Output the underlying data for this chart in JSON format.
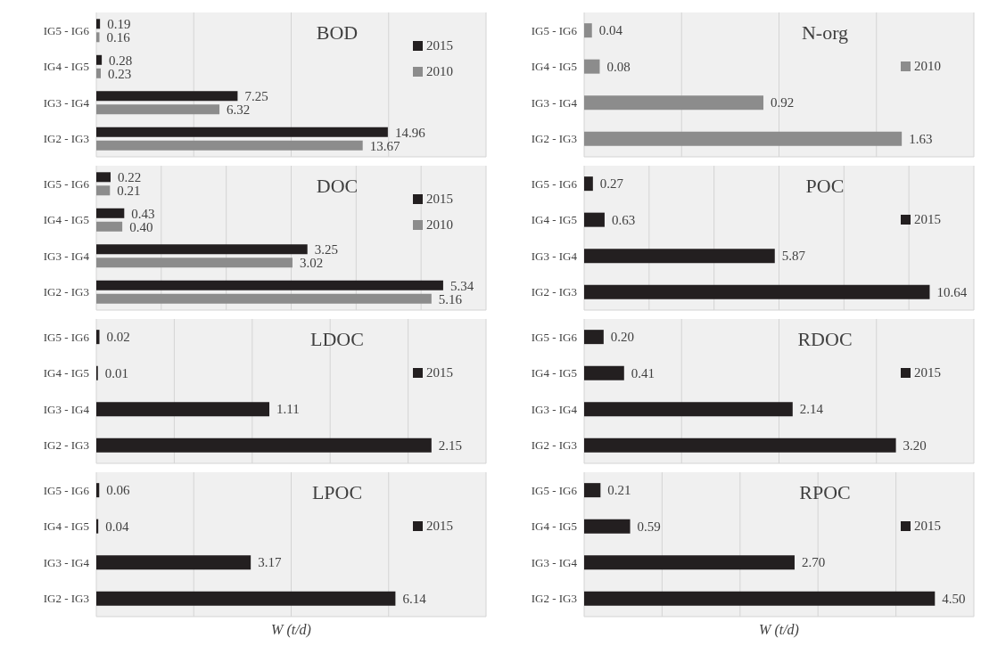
{
  "chart_data": [
    {
      "type": "bar",
      "orientation": "horizontal",
      "title": "BOD",
      "categories": [
        "IG5 - IG6",
        "IG4 - IG5",
        "IG3 - IG4",
        "IG2 - IG3"
      ],
      "series": [
        {
          "name": "2015",
          "color": "#231f20",
          "values": [
            0.19,
            0.28,
            7.25,
            14.96
          ],
          "value_labels": [
            "0.19",
            "0.28",
            "7.25",
            "14.96"
          ]
        },
        {
          "name": "2010",
          "color": "#8c8c8c",
          "values": [
            0.16,
            0.23,
            6.32,
            13.67
          ],
          "value_labels": [
            "0.16",
            "0.23",
            "6.32",
            "13.67"
          ]
        }
      ],
      "xlim": [
        0,
        20
      ],
      "xticks": [
        {
          "value": 0,
          "label": null
        },
        {
          "value": 5,
          "label": null
        },
        {
          "value": 10,
          "label": null
        },
        {
          "value": 15,
          "label": null
        },
        {
          "value": 20,
          "label": null
        }
      ],
      "tick_labels": "y",
      "grid": "x",
      "legend": "right"
    },
    {
      "type": "bar",
      "orientation": "horizontal",
      "title": "N-org",
      "categories": [
        "IG5 - IG6",
        "IG4 - IG5",
        "IG3 - IG4",
        "IG2 - IG3"
      ],
      "series": [
        {
          "name": "2010",
          "color": "#8c8c8c",
          "values": [
            0.04,
            0.08,
            0.92,
            1.63
          ],
          "value_labels": [
            "0.04",
            "0.08",
            "0.92",
            "1.63"
          ]
        }
      ],
      "xlim": [
        0,
        2
      ],
      "xticks": [
        {
          "value": 0,
          "label": null
        },
        {
          "value": 0.5,
          "label": null
        },
        {
          "value": 1,
          "label": null
        },
        {
          "value": 1.5,
          "label": null
        },
        {
          "value": 2,
          "label": null
        }
      ],
      "tick_labels": "y",
      "grid": "x",
      "legend": "right"
    },
    {
      "type": "bar",
      "orientation": "horizontal",
      "title": "DOC",
      "categories": [
        "IG5 - IG6",
        "IG4 - IG5",
        "IG3 - IG4",
        "IG2 - IG3"
      ],
      "series": [
        {
          "name": "2015",
          "color": "#231f20",
          "values": [
            0.22,
            0.43,
            3.25,
            5.34
          ],
          "value_labels": [
            "0.22",
            "0.43",
            "3.25",
            "5.34"
          ]
        },
        {
          "name": "2010",
          "color": "#8c8c8c",
          "values": [
            0.21,
            0.4,
            3.02,
            5.16
          ],
          "value_labels": [
            "0.21",
            "0.40",
            "3.02",
            "5.16"
          ]
        }
      ],
      "xlim": [
        0,
        6
      ],
      "xticks": [
        {
          "value": 0,
          "label": null
        },
        {
          "value": 1,
          "label": null
        },
        {
          "value": 2,
          "label": null
        },
        {
          "value": 3,
          "label": null
        },
        {
          "value": 4,
          "label": null
        },
        {
          "value": 5,
          "label": null
        },
        {
          "value": 6,
          "label": null
        }
      ],
      "tick_labels": "y",
      "grid": "x",
      "legend": "right"
    },
    {
      "type": "bar",
      "orientation": "horizontal",
      "title": "POC",
      "categories": [
        "IG5 - IG6",
        "IG4 - IG5",
        "IG3 - IG4",
        "IG2 - IG3"
      ],
      "series": [
        {
          "name": "2015",
          "color": "#231f20",
          "values": [
            0.27,
            0.63,
            5.87,
            10.64
          ],
          "value_labels": [
            "0.27",
            "0.63",
            "5.87",
            "10.64"
          ]
        }
      ],
      "xlim": [
        0,
        12
      ],
      "xticks": [
        {
          "value": 0,
          "label": null
        },
        {
          "value": 2,
          "label": null
        },
        {
          "value": 4,
          "label": null
        },
        {
          "value": 6,
          "label": null
        },
        {
          "value": 8,
          "label": null
        },
        {
          "value": 10,
          "label": null
        },
        {
          "value": 12,
          "label": null
        }
      ],
      "tick_labels": "y",
      "grid": "x",
      "legend": "right"
    },
    {
      "type": "bar",
      "orientation": "horizontal",
      "title": "LDOC",
      "categories": [
        "IG5 - IG6",
        "IG4 - IG5",
        "IG3 - IG4",
        "IG2 - IG3"
      ],
      "series": [
        {
          "name": "2015",
          "color": "#231f20",
          "values": [
            0.02,
            0.01,
            1.11,
            2.15
          ],
          "value_labels": [
            "0.02",
            "0.01",
            "1.11",
            "2.15"
          ]
        }
      ],
      "xlim": [
        0,
        2.5
      ],
      "xticks": [
        {
          "value": 0,
          "label": null
        },
        {
          "value": 0.5,
          "label": null
        },
        {
          "value": 1,
          "label": null
        },
        {
          "value": 1.5,
          "label": null
        },
        {
          "value": 2,
          "label": null
        },
        {
          "value": 2.5,
          "label": null
        }
      ],
      "tick_labels": "y",
      "grid": "x",
      "legend": "right"
    },
    {
      "type": "bar",
      "orientation": "horizontal",
      "title": "RDOC",
      "categories": [
        "IG5 - IG6",
        "IG4 - IG5",
        "IG3 - IG4",
        "IG2 - IG3"
      ],
      "series": [
        {
          "name": "2015",
          "color": "#231f20",
          "values": [
            0.2,
            0.41,
            2.14,
            3.2
          ],
          "value_labels": [
            "0.20",
            "0.41",
            "2.14",
            "3.20"
          ]
        }
      ],
      "xlim": [
        0,
        4
      ],
      "xticks": [
        {
          "value": 0,
          "label": null
        },
        {
          "value": 1,
          "label": null
        },
        {
          "value": 2,
          "label": null
        },
        {
          "value": 3,
          "label": null
        },
        {
          "value": 4,
          "label": null
        }
      ],
      "tick_labels": "y",
      "grid": "x",
      "legend": "right"
    },
    {
      "type": "bar",
      "orientation": "horizontal",
      "title": "LPOC",
      "xlabel": "W (t/d)",
      "categories": [
        "IG5 - IG6",
        "IG4 - IG5",
        "IG3 - IG4",
        "IG2 - IG3"
      ],
      "series": [
        {
          "name": "2015",
          "color": "#231f20",
          "values": [
            0.06,
            0.04,
            3.17,
            6.14
          ],
          "value_labels": [
            "0.06",
            "0.04",
            "3.17",
            "6.14"
          ]
        }
      ],
      "xlim": [
        0,
        8
      ],
      "xticks": [
        {
          "value": 0,
          "label": null
        },
        {
          "value": 2,
          "label": null
        },
        {
          "value": 4,
          "label": null
        },
        {
          "value": 6,
          "label": null
        },
        {
          "value": 8,
          "label": null
        }
      ],
      "tick_labels": "y",
      "grid": "x",
      "legend": "right"
    },
    {
      "type": "bar",
      "orientation": "horizontal",
      "title": "RPOC",
      "xlabel": "W (t/d)",
      "categories": [
        "IG5 - IG6",
        "IG4 - IG5",
        "IG3 - IG4",
        "IG2 - IG3"
      ],
      "series": [
        {
          "name": "2015",
          "color": "#231f20",
          "values": [
            0.21,
            0.59,
            2.7,
            4.5
          ],
          "value_labels": [
            "0.21",
            "0.59",
            "2.70",
            "4.50"
          ]
        }
      ],
      "xlim": [
        0,
        5
      ],
      "xticks": [
        {
          "value": 0,
          "label": null
        },
        {
          "value": 1,
          "label": null
        },
        {
          "value": 2,
          "label": null
        },
        {
          "value": 3,
          "label": null
        },
        {
          "value": 4,
          "label": null
        },
        {
          "value": 5,
          "label": null
        }
      ],
      "tick_labels": "y",
      "grid": "x",
      "legend": "right"
    }
  ]
}
